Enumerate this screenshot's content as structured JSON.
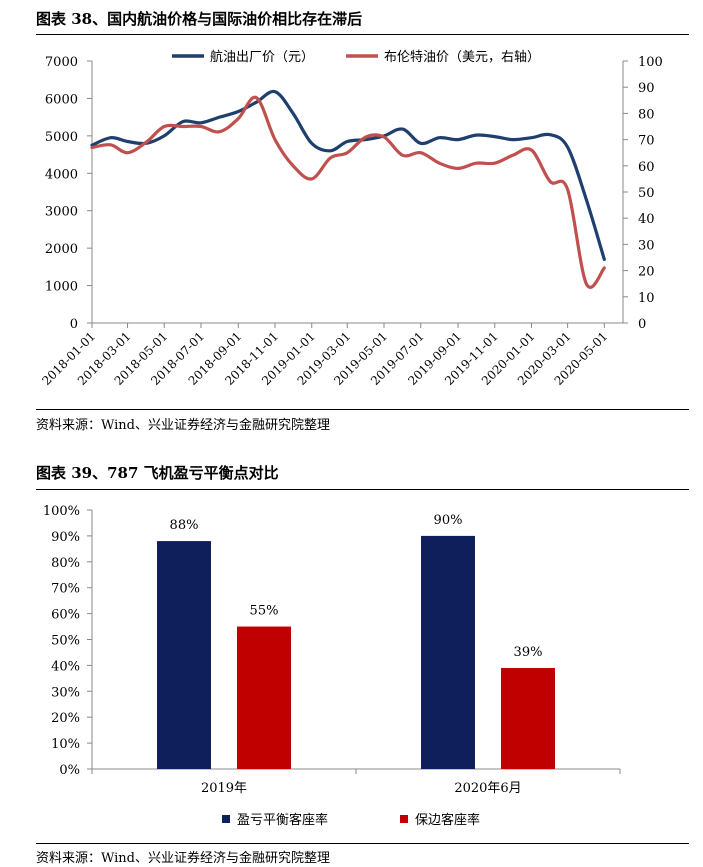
{
  "chart1": {
    "heading": "图表 38、国内航油价格与国际油价相比存在滞后",
    "source": "资料来源：Wind、兴业证券经济与金融研究院整理",
    "colors": {
      "series1": "#1F3F6E",
      "series2": "#C0504D"
    }
  },
  "chart2": {
    "heading": "图表 39、787 飞机盈亏平衡点对比",
    "source": "资料来源：Wind、兴业证券经济与金融研究院整理",
    "colors": {
      "series1": "#0F1F5C",
      "series2": "#C00000"
    }
  },
  "chart_data": [
    {
      "type": "line",
      "title": "",
      "legend_position": "top",
      "grid": false,
      "x_tick_labels": [
        "2018-01-01",
        "2018-03-01",
        "2018-05-01",
        "2018-07-01",
        "2018-09-01",
        "2018-11-01",
        "2019-01-01",
        "2019-03-01",
        "2019-05-01",
        "2019-07-01",
        "2019-09-01",
        "2019-11-01",
        "2020-01-01",
        "2020-03-01",
        "2020-05-01"
      ],
      "xlim": [
        "2018-01-01",
        "2020-06-01"
      ],
      "ylim_left": [
        0,
        7000
      ],
      "y_ticks_left": [
        0,
        1000,
        2000,
        3000,
        4000,
        5000,
        6000,
        7000
      ],
      "ylim_right": [
        0,
        100
      ],
      "y_ticks_right": [
        0,
        10,
        20,
        30,
        40,
        50,
        60,
        70,
        80,
        90,
        100
      ],
      "series": [
        {
          "name": "航油出厂价（元）",
          "axis": "left",
          "x": [
            "2018-01-01",
            "2018-02-01",
            "2018-03-01",
            "2018-04-01",
            "2018-05-01",
            "2018-06-01",
            "2018-07-01",
            "2018-08-01",
            "2018-09-01",
            "2018-10-01",
            "2018-11-01",
            "2018-12-01",
            "2019-01-01",
            "2019-02-01",
            "2019-03-01",
            "2019-04-01",
            "2019-05-01",
            "2019-06-01",
            "2019-07-01",
            "2019-08-01",
            "2019-09-01",
            "2019-10-01",
            "2019-11-01",
            "2019-12-01",
            "2020-01-01",
            "2020-02-01",
            "2020-03-01",
            "2020-04-01",
            "2020-05-01"
          ],
          "values": [
            4750,
            4950,
            4850,
            4800,
            5000,
            5380,
            5350,
            5500,
            5650,
            5900,
            6180,
            5600,
            4800,
            4600,
            4850,
            4900,
            5000,
            5180,
            4800,
            4950,
            4900,
            5020,
            4980,
            4900,
            4950,
            5030,
            4700,
            3300,
            1700
          ]
        },
        {
          "name": "布伦特油价（美元，右轴）",
          "axis": "right",
          "x": [
            "2018-01-01",
            "2018-02-01",
            "2018-03-01",
            "2018-04-01",
            "2018-05-01",
            "2018-06-01",
            "2018-07-01",
            "2018-08-01",
            "2018-09-01",
            "2018-10-01",
            "2018-11-01",
            "2018-12-01",
            "2019-01-01",
            "2019-02-01",
            "2019-03-01",
            "2019-04-01",
            "2019-05-01",
            "2019-06-01",
            "2019-07-01",
            "2019-08-01",
            "2019-09-01",
            "2019-10-01",
            "2019-11-01",
            "2019-12-01",
            "2020-01-01",
            "2020-02-01",
            "2020-03-01",
            "2020-04-01",
            "2020-05-01"
          ],
          "values": [
            67,
            68,
            65,
            69,
            75,
            75,
            75,
            73,
            78,
            86,
            70,
            60,
            55,
            63,
            65,
            71,
            71,
            64,
            65,
            61,
            59,
            61,
            61,
            64,
            66,
            54,
            51,
            15,
            21
          ]
        }
      ]
    },
    {
      "type": "bar",
      "title": "",
      "legend_position": "bottom",
      "grid": false,
      "categories": [
        "2019年",
        "2020年6月"
      ],
      "ylim": [
        0,
        100
      ],
      "y_ticks": [
        "0%",
        "10%",
        "20%",
        "30%",
        "40%",
        "50%",
        "60%",
        "70%",
        "80%",
        "90%",
        "100%"
      ],
      "series": [
        {
          "name": "盈亏平衡客座率",
          "values": [
            88,
            90
          ],
          "labels": [
            "88%",
            "90%"
          ]
        },
        {
          "name": "保边客座率",
          "values": [
            55,
            39
          ],
          "labels": [
            "55%",
            "39%"
          ]
        }
      ]
    }
  ]
}
